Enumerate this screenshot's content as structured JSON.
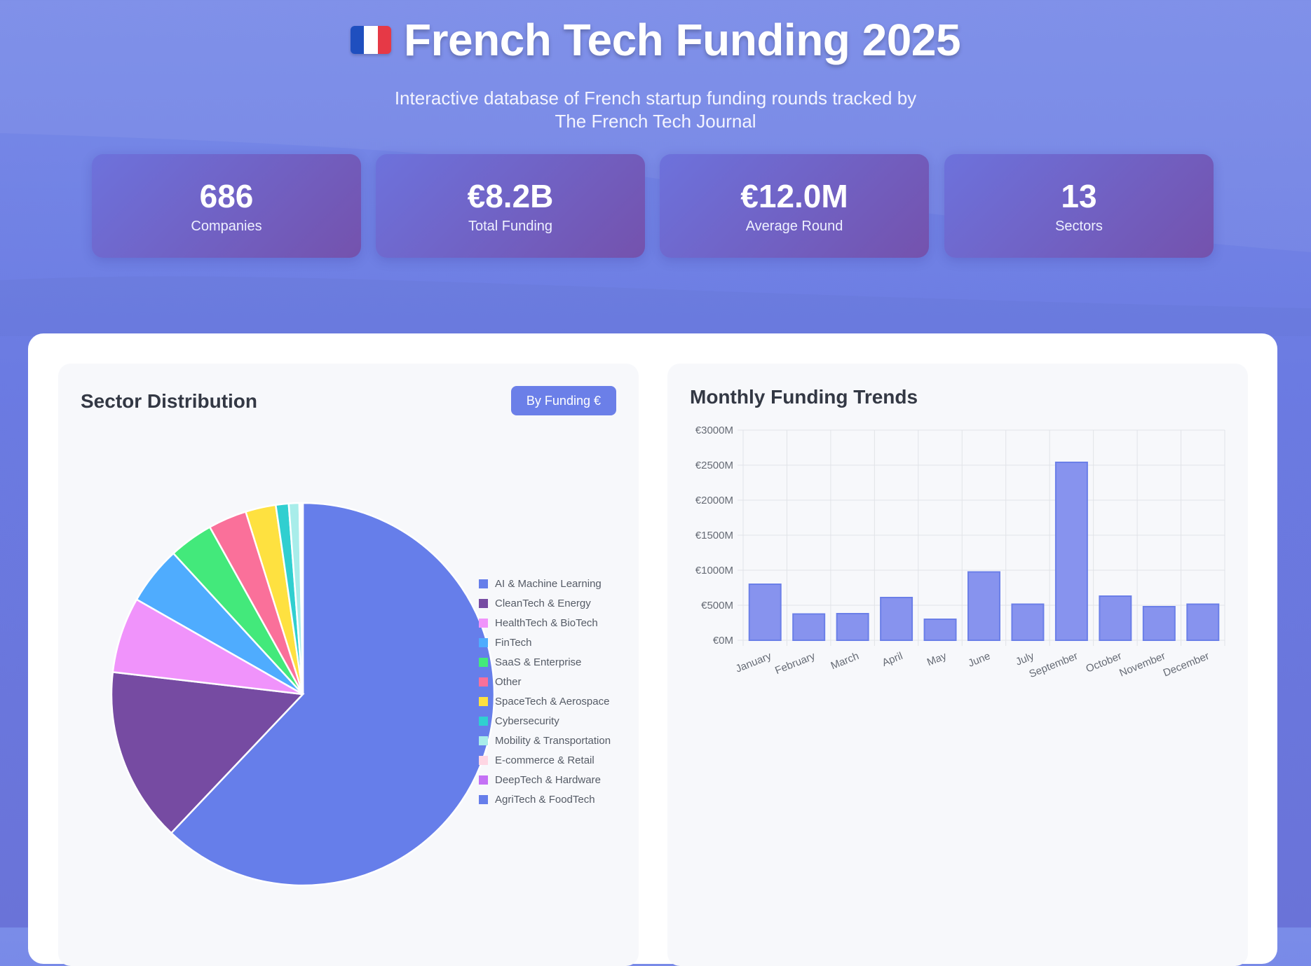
{
  "header": {
    "title": "French Tech Funding 2025",
    "flag_colors": [
      "#1f4fbf",
      "#ffffff",
      "#e63946"
    ],
    "subtitle_line1": "Interactive database of French startup funding rounds tracked by",
    "subtitle_line2": "The French Tech Journal"
  },
  "stats": [
    {
      "value": "686",
      "label": "Companies"
    },
    {
      "value": "€8.2B",
      "label": "Total Funding"
    },
    {
      "value": "€12.0M",
      "label": "Average Round"
    },
    {
      "value": "13",
      "label": "Sectors"
    }
  ],
  "sector_card": {
    "title": "Sector Distribution",
    "button_label": "By Funding €"
  },
  "trends_card": {
    "title": "Monthly Funding Trends"
  },
  "chart_data": [
    {
      "type": "pie",
      "title": "Sector Distribution",
      "labels": [
        "AI & Machine Learning",
        "CleanTech & Energy",
        "HealthTech & BioTech",
        "FinTech",
        "SaaS & Enterprise",
        "Other",
        "SpaceTech & Aerospace",
        "Cybersecurity",
        "Mobility & Transportation",
        "E-commerce & Retail",
        "DeepTech & Hardware",
        "AgriTech & FoodTech"
      ],
      "values": [
        63.0,
        15.0,
        6.5,
        5.0,
        3.8,
        3.3,
        2.6,
        1.1,
        0.9,
        0.1,
        0.1,
        0.1
      ],
      "colors": [
        "#667eea",
        "#764ba2",
        "#f093fb",
        "#4facfe",
        "#43e97b",
        "#fa709a",
        "#fee140",
        "#30cfd0",
        "#a8edea",
        "#fed6e3",
        "#c471f5",
        "#667eea"
      ],
      "legend_position": "right"
    },
    {
      "type": "bar",
      "title": "Monthly Funding Trends",
      "categories": [
        "January",
        "February",
        "March",
        "April",
        "May",
        "June",
        "July",
        "September",
        "October",
        "November",
        "December"
      ],
      "values": [
        800,
        375,
        380,
        610,
        300,
        975,
        515,
        2540,
        630,
        480,
        515
      ],
      "y_unit_prefix": "€",
      "y_unit_suffix": "M",
      "y_ticks": [
        0,
        500,
        1000,
        1500,
        2000,
        2500,
        3000
      ],
      "ylim": [
        0,
        3000
      ],
      "grid": true,
      "bar_color": "#8793ee",
      "bar_border": "#6b7fe8"
    }
  ]
}
